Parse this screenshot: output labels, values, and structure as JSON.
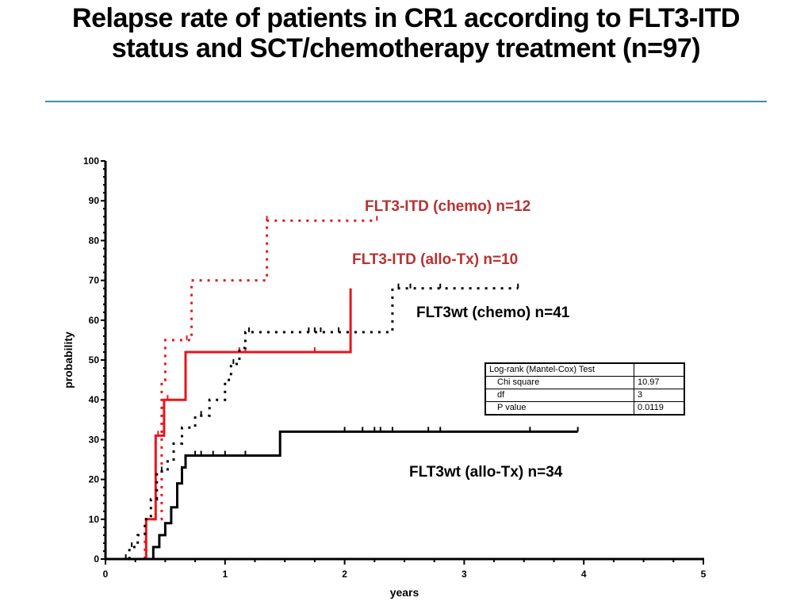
{
  "slide": {
    "title": "Relapse rate of patients in CR1 according to FLT3-ITD status and SCT/chemotherapy treatment (n=97)",
    "rule_color": "#3a8cc4"
  },
  "stats_table": {
    "header": "Log-rank (Mantel-Cox) Test",
    "rows": [
      {
        "label": "Chi square",
        "value": "10.97"
      },
      {
        "label": "df",
        "value": "3"
      },
      {
        "label": "P value",
        "value": "0.0119"
      }
    ]
  },
  "chart_data": {
    "type": "line",
    "subtype": "kaplan-meier-step",
    "title": "",
    "xlabel": "years",
    "ylabel": "probability",
    "xlim": [
      0,
      5
    ],
    "ylim": [
      0,
      100
    ],
    "x_ticks": [
      "0",
      "1",
      "2",
      "3",
      "4",
      "5"
    ],
    "y_ticks": [
      "0",
      "10",
      "20",
      "30",
      "40",
      "50",
      "60",
      "70",
      "80",
      "90",
      "100"
    ],
    "grid": false,
    "legend": "inline-labels",
    "series": [
      {
        "name": "FLT3-ITD (chemo) n=12",
        "color": "#e8141c",
        "label_color": "#b83232",
        "style": "dotted",
        "steps": [
          [
            0,
            0
          ],
          [
            0.33,
            0
          ],
          [
            0.33,
            10
          ],
          [
            0.47,
            10
          ],
          [
            0.47,
            45
          ],
          [
            0.5,
            45
          ],
          [
            0.5,
            55
          ],
          [
            0.72,
            55
          ],
          [
            0.72,
            70
          ],
          [
            1.35,
            70
          ],
          [
            1.35,
            85
          ],
          [
            2.27,
            85
          ]
        ],
        "censor_x": [
          0.68,
          1.35,
          2.27
        ]
      },
      {
        "name": "FLT3-ITD (allo-Tx) n=10",
        "color": "#e8141c",
        "label_color": "#b83232",
        "style": "solid",
        "steps": [
          [
            0,
            0
          ],
          [
            0.34,
            0
          ],
          [
            0.34,
            10
          ],
          [
            0.42,
            10
          ],
          [
            0.42,
            31
          ],
          [
            0.49,
            31
          ],
          [
            0.49,
            40
          ],
          [
            0.67,
            40
          ],
          [
            0.67,
            52
          ],
          [
            2.05,
            52
          ],
          [
            2.05,
            68
          ]
        ],
        "censor_x": [
          0.44,
          0.52,
          1.12,
          1.17,
          1.75
        ]
      },
      {
        "name": "FLT3wt (chemo) n=41",
        "color": "#000000",
        "label_color": "#000000",
        "style": "dotted",
        "steps": [
          [
            0,
            0
          ],
          [
            0.2,
            0
          ],
          [
            0.2,
            3
          ],
          [
            0.27,
            3
          ],
          [
            0.27,
            6
          ],
          [
            0.33,
            6
          ],
          [
            0.33,
            10
          ],
          [
            0.38,
            10
          ],
          [
            0.38,
            15
          ],
          [
            0.43,
            15
          ],
          [
            0.43,
            22
          ],
          [
            0.52,
            22
          ],
          [
            0.52,
            25
          ],
          [
            0.57,
            25
          ],
          [
            0.57,
            29
          ],
          [
            0.64,
            29
          ],
          [
            0.64,
            33
          ],
          [
            0.75,
            33
          ],
          [
            0.75,
            36
          ],
          [
            0.87,
            36
          ],
          [
            0.87,
            40
          ],
          [
            1.0,
            40
          ],
          [
            1.0,
            45
          ],
          [
            1.05,
            45
          ],
          [
            1.05,
            49
          ],
          [
            1.12,
            49
          ],
          [
            1.12,
            53
          ],
          [
            1.17,
            53
          ],
          [
            1.17,
            57
          ],
          [
            2.4,
            57
          ],
          [
            2.4,
            68
          ],
          [
            3.45,
            68
          ]
        ],
        "censor_x": [
          0.17,
          0.22,
          0.47,
          0.8,
          1.07,
          1.2,
          1.7,
          1.75,
          1.8,
          1.95,
          2.45,
          2.55,
          2.8,
          3.45
        ]
      },
      {
        "name": "FLT3wt (allo-Tx) n=34",
        "color": "#000000",
        "label_color": "#000000",
        "style": "solid",
        "steps": [
          [
            0,
            0
          ],
          [
            0.4,
            0
          ],
          [
            0.4,
            3
          ],
          [
            0.45,
            3
          ],
          [
            0.45,
            6
          ],
          [
            0.5,
            6
          ],
          [
            0.5,
            9
          ],
          [
            0.55,
            9
          ],
          [
            0.55,
            13
          ],
          [
            0.6,
            13
          ],
          [
            0.6,
            19
          ],
          [
            0.64,
            19
          ],
          [
            0.64,
            23
          ],
          [
            0.67,
            23
          ],
          [
            0.67,
            26
          ],
          [
            1.46,
            26
          ],
          [
            1.46,
            32
          ],
          [
            3.95,
            32
          ]
        ],
        "censor_x": [
          0.75,
          0.8,
          0.9,
          1.0,
          1.17,
          2.0,
          2.15,
          2.25,
          2.3,
          2.4,
          2.7,
          2.8,
          3.55,
          3.95
        ]
      }
    ]
  }
}
